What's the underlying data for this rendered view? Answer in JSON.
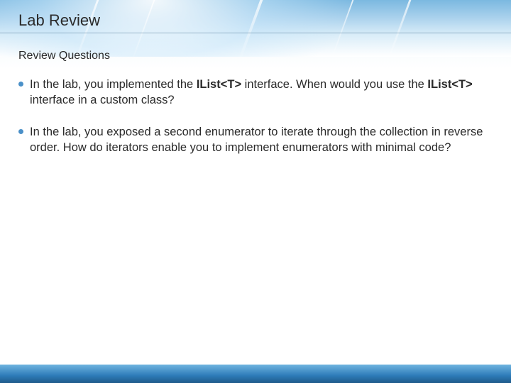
{
  "title": "Lab Review",
  "subtitle": "Review Questions",
  "bullets": [
    {
      "pre": "In the lab, you implemented the ",
      "b1": "IList<T>",
      "mid": " interface. When would you use the ",
      "b2": "IList<T>",
      "post": " interface in a custom class?"
    },
    {
      "text": "In the lab, you exposed a second enumerator to iterate through the collection in reverse order. How do iterators enable you to implement enumerators with minimal code?"
    }
  ],
  "colors": {
    "bullet": "#4a90c8",
    "text": "#2a2a2a",
    "bottom_bar_top": "#6fb4e0",
    "bottom_bar_bottom": "#1f5a8a"
  },
  "fontsize": {
    "title": 22,
    "subtitle": 16,
    "body": 16.5
  }
}
